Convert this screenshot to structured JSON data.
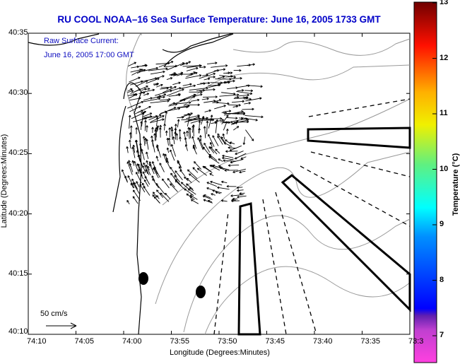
{
  "title": "RU COOL  NOAA–16  Sea Surface Temperature:  June 16, 2005 1733 GMT",
  "annotation": {
    "line1": "Raw Surface Current:",
    "line2": "June 16, 2005 17:00 GMT"
  },
  "scale_label": "50 cm/s",
  "xlabel": "Longitude (Degrees:Minutes)",
  "ylabel": "Latitude (Degrees:Minutes)",
  "x_ticks": [
    "74:10",
    "74:05",
    "74:00",
    "73:55",
    "73:50",
    "73:45",
    "73:40",
    "73:35",
    "73:3"
  ],
  "y_ticks": [
    "40:35",
    "40:30",
    "40:25",
    "40:20",
    "40:15",
    "40:10"
  ],
  "colorbar": {
    "label": "Temperature (°C)",
    "ticks": [
      "13",
      "12",
      "11",
      "10",
      "9",
      "8",
      "7"
    ],
    "range": [
      6.5,
      13
    ]
  },
  "colors": {
    "title": "#0000c8",
    "coast": "#000000",
    "contour": "#888888"
  }
}
